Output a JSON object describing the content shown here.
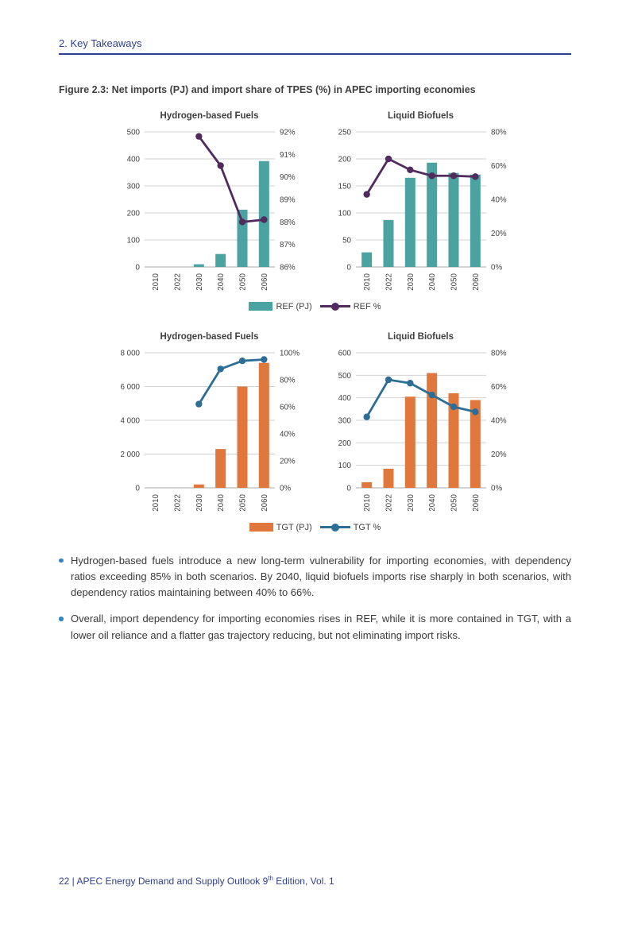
{
  "page": {
    "header": "2. Key Takeaways",
    "figure_title": "Figure 2.3: Net imports (PJ) and import share of TPES (%) in APEC importing economies",
    "footer": {
      "prefix": "22 | APEC Energy Demand and Supply Outlook 9",
      "superscript": "th",
      "suffix": " Edition, Vol. 1"
    }
  },
  "colors": {
    "navy": "#2e3f8e",
    "teal": "#4aa3a0",
    "purple": "#522b5e",
    "orange": "#e0773c",
    "blue": "#2d6e96",
    "bullet_dot": "#2e86c5",
    "grid": "#d2d2d2",
    "axis_line": "#a9a9a9",
    "axis_text": "#424242"
  },
  "legends": [
    {
      "bar_label": "REF (PJ)",
      "line_label": "REF %"
    },
    {
      "bar_label": "TGT (PJ)",
      "line_label": "TGT %"
    }
  ],
  "bullets": [
    "Hydrogen-based fuels introduce a new long-term vulnerability for importing economies, with dependency ratios exceeding 85% in both scenarios. By 2040, liquid biofuels imports rise sharply in both scenarios, with dependency ratios maintaining between 40% to 66%.",
    "Overall, import dependency for importing economies rises in REF, while it is more contained in TGT, with a lower oil reliance and a flatter gas trajectory reducing, but not eliminating import risks."
  ],
  "chart_data": [
    {
      "type": "bar",
      "title": "Hydrogen-based Fuels",
      "scenario": "REF",
      "categories": [
        "2010",
        "2022",
        "2030",
        "2040",
        "2050",
        "2060"
      ],
      "bars": {
        "name": "REF (PJ)",
        "color": "#4aa3a0",
        "values": [
          0,
          0,
          10,
          48,
          212,
          392
        ]
      },
      "line": {
        "name": "REF %",
        "color": "#522b5e",
        "values": [
          null,
          null,
          91.8,
          90.5,
          88.0,
          88.1
        ]
      },
      "left_axis": {
        "min": 0,
        "max": 500,
        "ticks": [
          0,
          100,
          200,
          300,
          400,
          500
        ],
        "tick_labels": [
          "0",
          "100",
          "200",
          "300",
          "400",
          "500"
        ]
      },
      "right_axis": {
        "min": 86,
        "max": 92,
        "ticks": [
          86,
          87,
          88,
          89,
          90,
          91,
          92
        ],
        "tick_labels": [
          "86%",
          "87%",
          "88%",
          "89%",
          "90%",
          "91%",
          "92%"
        ]
      },
      "grid": true,
      "legend_position": "bottom"
    },
    {
      "type": "bar",
      "title": "Liquid Biofuels",
      "scenario": "REF",
      "categories": [
        "2010",
        "2022",
        "2030",
        "2040",
        "2050",
        "2060"
      ],
      "bars": {
        "name": "REF (PJ)",
        "color": "#4aa3a0",
        "values": [
          27,
          87,
          165,
          193,
          174,
          171
        ]
      },
      "line": {
        "name": "REF %",
        "color": "#522b5e",
        "values": [
          43,
          64,
          57.5,
          54,
          54,
          53.5
        ]
      },
      "left_axis": {
        "min": 0,
        "max": 250,
        "ticks": [
          0,
          50,
          100,
          150,
          200,
          250
        ],
        "tick_labels": [
          "0",
          "50",
          "100",
          "150",
          "200",
          "250"
        ]
      },
      "right_axis": {
        "min": 0,
        "max": 80,
        "ticks": [
          0,
          20,
          40,
          60,
          80
        ],
        "tick_labels": [
          "0%",
          "20%",
          "40%",
          "60%",
          "80%"
        ]
      },
      "grid": true,
      "legend_position": "bottom"
    },
    {
      "type": "bar",
      "title": "Hydrogen-based Fuels",
      "scenario": "TGT",
      "categories": [
        "2010",
        "2022",
        "2030",
        "2040",
        "2050",
        "2060"
      ],
      "bars": {
        "name": "TGT (PJ)",
        "color": "#e0773c",
        "values": [
          0,
          0,
          200,
          2300,
          6000,
          7400
        ]
      },
      "line": {
        "name": "TGT %",
        "color": "#2d6e96",
        "values": [
          null,
          null,
          62,
          88,
          94,
          95
        ]
      },
      "left_axis": {
        "min": 0,
        "max": 8000,
        "ticks": [
          0,
          2000,
          4000,
          6000,
          8000
        ],
        "tick_labels": [
          "0",
          "2 000",
          "4 000",
          "6 000",
          "8 000"
        ]
      },
      "right_axis": {
        "min": 0,
        "max": 100,
        "ticks": [
          0,
          20,
          40,
          60,
          80,
          100
        ],
        "tick_labels": [
          "0%",
          "20%",
          "40%",
          "60%",
          "80%",
          "100%"
        ]
      },
      "grid": true,
      "legend_position": "bottom"
    },
    {
      "type": "bar",
      "title": "Liquid Biofuels",
      "scenario": "TGT",
      "categories": [
        "2010",
        "2022",
        "2030",
        "2040",
        "2050",
        "2060"
      ],
      "bars": {
        "name": "TGT (PJ)",
        "color": "#e0773c",
        "values": [
          25,
          85,
          405,
          510,
          420,
          390
        ]
      },
      "line": {
        "name": "TGT %",
        "color": "#2d6e96",
        "values": [
          42,
          64,
          62,
          55,
          48,
          45
        ]
      },
      "left_axis": {
        "min": 0,
        "max": 600,
        "ticks": [
          0,
          100,
          200,
          300,
          400,
          500,
          600
        ],
        "tick_labels": [
          "0",
          "100",
          "200",
          "300",
          "400",
          "500",
          "600"
        ]
      },
      "right_axis": {
        "min": 0,
        "max": 80,
        "ticks": [
          0,
          20,
          40,
          60,
          80
        ],
        "tick_labels": [
          "0%",
          "20%",
          "40%",
          "60%",
          "80%"
        ]
      },
      "grid": true,
      "legend_position": "bottom"
    }
  ]
}
